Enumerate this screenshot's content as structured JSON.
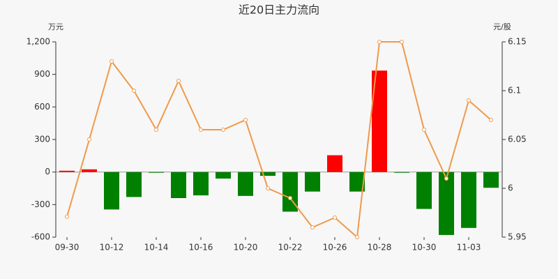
{
  "chart_data": {
    "type": "combo",
    "title": "近20日主力流向",
    "ylabel": "万元",
    "y2label": "元/股",
    "categories": [
      "09-30",
      null,
      "10-12",
      null,
      "10-14",
      null,
      "10-16",
      null,
      "10-20",
      null,
      "10-22",
      null,
      "10-26",
      null,
      "10-28",
      null,
      "10-30",
      null,
      "11-03",
      null
    ],
    "series": [
      {
        "type": "bar",
        "positive_color": "#ff0000",
        "negative_color": "#008000",
        "values": [
          12,
          25,
          -345,
          -230,
          -5,
          -240,
          -215,
          -60,
          -220,
          -35,
          -365,
          -180,
          155,
          -180,
          935,
          -5,
          -340,
          -580,
          -515,
          -145
        ]
      },
      {
        "type": "line",
        "axis": "y2",
        "color": "#f0994a",
        "values": [
          5.971,
          6.05,
          6.13,
          6.1,
          6.06,
          6.11,
          6.06,
          6.06,
          6.07,
          6.0,
          5.99,
          5.96,
          5.97,
          5.95,
          6.15,
          6.15,
          6.06,
          6.01,
          6.09,
          6.07
        ]
      }
    ],
    "ylim": [
      -600,
      1200
    ],
    "yticks": [
      -600,
      -300,
      0,
      300,
      600,
      900,
      {
        "value": 1200,
        "label": "1,200"
      }
    ],
    "y2lim": [
      5.95,
      6.15
    ],
    "y2ticks": [
      5.95,
      6,
      6.05,
      6.1,
      6.15
    ],
    "grid": false
  }
}
